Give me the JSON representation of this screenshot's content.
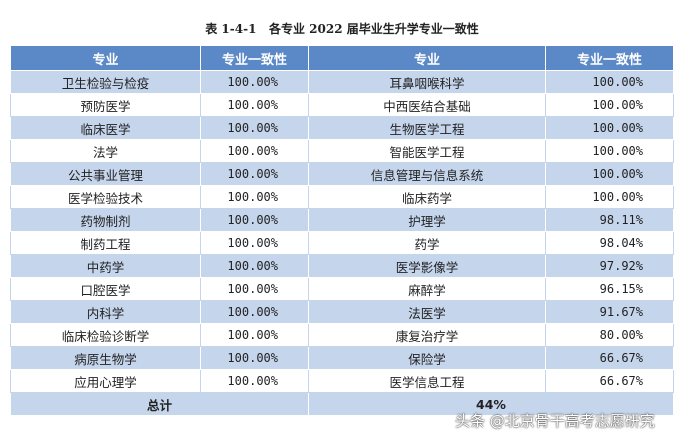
{
  "title": "表 1-4-1   各专业 2022 届毕业生升学专业一致性",
  "table": {
    "headers": [
      "专业",
      "专业一致性",
      "专业",
      "专业一致性"
    ],
    "rows": [
      [
        "卫生检验与检疫",
        "100.00%",
        "耳鼻咽喉科学",
        "100.00%"
      ],
      [
        "预防医学",
        "100.00%",
        "中西医结合基础",
        "100.00%"
      ],
      [
        "临床医学",
        "100.00%",
        "生物医学工程",
        "100.00%"
      ],
      [
        "法学",
        "100.00%",
        "智能医学工程",
        "100.00%"
      ],
      [
        "公共事业管理",
        "100.00%",
        "信息管理与信息系统",
        "100.00%"
      ],
      [
        "医学检验技术",
        "100.00%",
        "临床药学",
        "100.00%"
      ],
      [
        "药物制剂",
        "100.00%",
        "护理学",
        "98.11%"
      ],
      [
        "制药工程",
        "100.00%",
        "药学",
        "98.04%"
      ],
      [
        "中药学",
        "100.00%",
        "医学影像学",
        "97.92%"
      ],
      [
        "口腔医学",
        "100.00%",
        "麻醉学",
        "96.15%"
      ],
      [
        "内科学",
        "100.00%",
        "法医学",
        "91.67%"
      ],
      [
        "临床检验诊断学",
        "100.00%",
        "康复治疗学",
        "80.00%"
      ],
      [
        "病原生物学",
        "100.00%",
        "保险学",
        "66.67%"
      ],
      [
        "应用心理学",
        "100.00%",
        "医学信息工程",
        "66.67%"
      ]
    ],
    "total": {
      "label": "总计",
      "value": "44%"
    }
  },
  "watermark": "头条 @北京骨干高考志愿研究"
}
